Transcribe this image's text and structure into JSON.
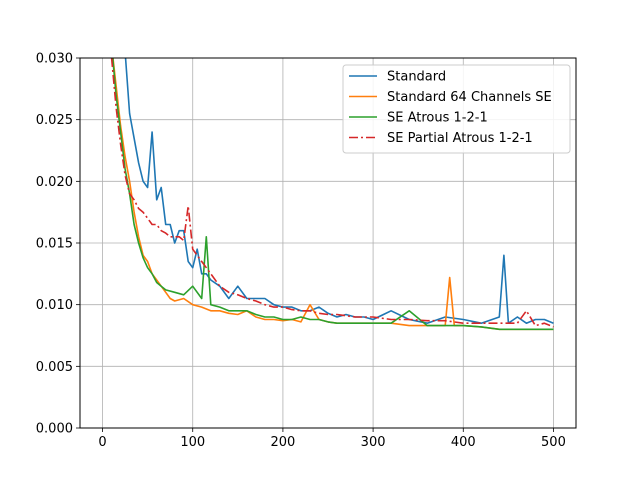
{
  "chart_data": {
    "type": "line",
    "title": "",
    "xlabel": "",
    "ylabel": "",
    "xlim": [
      -25,
      525
    ],
    "ylim": [
      0,
      0.03
    ],
    "xticks": [
      0,
      100,
      200,
      300,
      400,
      500
    ],
    "xtick_labels": [
      "0",
      "100",
      "200",
      "300",
      "400",
      "500"
    ],
    "yticks": [
      0,
      0.005,
      0.01,
      0.015,
      0.02,
      0.025,
      0.03
    ],
    "ytick_labels": [
      "0.000",
      "0.005",
      "0.010",
      "0.015",
      "0.020",
      "0.025",
      "0.030"
    ],
    "grid": true,
    "legend_position": "top-right",
    "series": [
      {
        "name": "Standard",
        "color": "#1f77b4",
        "dash": "solid",
        "x": [
          10,
          20,
          25,
          30,
          35,
          40,
          45,
          50,
          55,
          60,
          65,
          70,
          75,
          80,
          85,
          90,
          95,
          100,
          105,
          110,
          115,
          120,
          130,
          140,
          150,
          160,
          170,
          180,
          190,
          200,
          210,
          220,
          230,
          240,
          250,
          260,
          270,
          280,
          290,
          300,
          320,
          340,
          360,
          380,
          400,
          420,
          440,
          445,
          450,
          460,
          470,
          480,
          490,
          500
        ],
        "y": [
          0.035,
          0.031,
          0.0305,
          0.0255,
          0.0235,
          0.0215,
          0.02,
          0.0195,
          0.024,
          0.0185,
          0.0195,
          0.0165,
          0.0165,
          0.015,
          0.016,
          0.016,
          0.0135,
          0.013,
          0.0145,
          0.0125,
          0.0125,
          0.012,
          0.0115,
          0.0105,
          0.0115,
          0.0105,
          0.0105,
          0.0105,
          0.01,
          0.0098,
          0.0098,
          0.0095,
          0.0095,
          0.0098,
          0.0093,
          0.009,
          0.0092,
          0.009,
          0.009,
          0.0088,
          0.0095,
          0.0088,
          0.0085,
          0.009,
          0.0088,
          0.0085,
          0.009,
          0.014,
          0.0085,
          0.009,
          0.0085,
          0.0088,
          0.0088,
          0.0085
        ]
      },
      {
        "name": "Standard 64 Channels SE",
        "color": "#ff7f0e",
        "dash": "solid",
        "x": [
          10,
          20,
          25,
          30,
          35,
          40,
          45,
          50,
          55,
          60,
          65,
          70,
          75,
          80,
          90,
          100,
          110,
          120,
          130,
          140,
          150,
          160,
          170,
          180,
          190,
          200,
          210,
          220,
          230,
          240,
          250,
          260,
          280,
          300,
          320,
          340,
          360,
          380,
          385,
          390,
          400,
          420,
          440,
          460,
          480,
          500
        ],
        "y": [
          0.031,
          0.0245,
          0.022,
          0.02,
          0.0175,
          0.0155,
          0.014,
          0.0135,
          0.0125,
          0.012,
          0.0115,
          0.011,
          0.0105,
          0.0103,
          0.0105,
          0.01,
          0.0098,
          0.0095,
          0.0095,
          0.0093,
          0.0092,
          0.0095,
          0.009,
          0.0088,
          0.0088,
          0.0087,
          0.0088,
          0.0086,
          0.01,
          0.0088,
          0.0086,
          0.0085,
          0.0085,
          0.0085,
          0.0085,
          0.0083,
          0.0083,
          0.0083,
          0.0122,
          0.0083,
          0.0083,
          0.0082,
          0.008,
          0.008,
          0.008,
          0.008
        ]
      },
      {
        "name": "SE Atrous 1-2-1",
        "color": "#2ca02c",
        "dash": "solid",
        "x": [
          10,
          15,
          20,
          25,
          30,
          35,
          40,
          45,
          50,
          55,
          60,
          65,
          70,
          80,
          90,
          100,
          110,
          115,
          120,
          130,
          140,
          150,
          160,
          170,
          180,
          190,
          200,
          210,
          220,
          230,
          240,
          250,
          260,
          280,
          300,
          320,
          340,
          360,
          380,
          400,
          420,
          440,
          460,
          480,
          500
        ],
        "y": [
          0.031,
          0.027,
          0.024,
          0.021,
          0.019,
          0.0165,
          0.015,
          0.0138,
          0.013,
          0.0125,
          0.0118,
          0.0115,
          0.0112,
          0.011,
          0.0108,
          0.0115,
          0.0105,
          0.0155,
          0.01,
          0.0098,
          0.0095,
          0.0095,
          0.0095,
          0.0092,
          0.009,
          0.009,
          0.0088,
          0.0088,
          0.009,
          0.0088,
          0.0088,
          0.0086,
          0.0085,
          0.0085,
          0.0085,
          0.0085,
          0.0095,
          0.0083,
          0.0083,
          0.0083,
          0.0082,
          0.008,
          0.008,
          0.008,
          0.008
        ]
      },
      {
        "name": "SE Partial Atrous 1-2-1",
        "color": "#d62728",
        "dash": "dashdot",
        "x": [
          10,
          15,
          20,
          25,
          30,
          35,
          40,
          45,
          50,
          55,
          60,
          65,
          70,
          75,
          80,
          85,
          90,
          95,
          100,
          110,
          120,
          130,
          140,
          150,
          160,
          170,
          180,
          190,
          200,
          210,
          220,
          230,
          240,
          250,
          260,
          280,
          300,
          320,
          340,
          360,
          380,
          400,
          420,
          440,
          460,
          470,
          480,
          490,
          500
        ],
        "y": [
          0.03,
          0.026,
          0.023,
          0.0205,
          0.019,
          0.0185,
          0.0178,
          0.0175,
          0.017,
          0.0165,
          0.0165,
          0.016,
          0.0158,
          0.0155,
          0.0155,
          0.0155,
          0.0152,
          0.018,
          0.0145,
          0.0135,
          0.0125,
          0.0115,
          0.011,
          0.0108,
          0.0105,
          0.0103,
          0.01,
          0.0098,
          0.0098,
          0.0096,
          0.0095,
          0.0095,
          0.0093,
          0.0092,
          0.0092,
          0.009,
          0.009,
          0.0088,
          0.0088,
          0.0087,
          0.0087,
          0.0085,
          0.0085,
          0.0085,
          0.0085,
          0.0095,
          0.0083,
          0.0085,
          0.0082
        ]
      }
    ]
  }
}
